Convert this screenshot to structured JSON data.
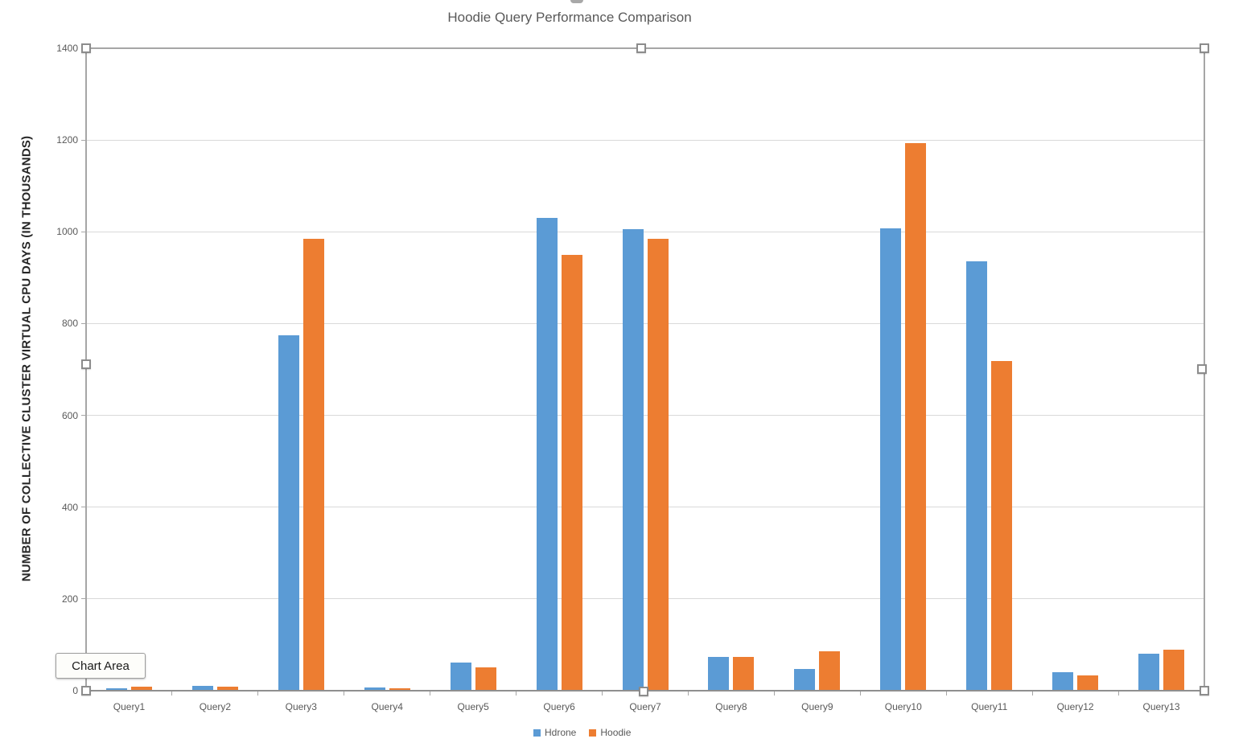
{
  "tooltip": {
    "label": "Chart Area"
  },
  "colors": {
    "hdrone": "#5B9BD5",
    "hoodie": "#ED7D31",
    "gridline": "#d9d9d9",
    "axis_text": "#595959",
    "selection_border": "#a6a6a6"
  },
  "chart_data": {
    "type": "bar",
    "title": "Hoodie Query Performance Comparison",
    "xlabel": "",
    "ylabel": "NUMBER OF COLLECTIVE CLUSTER VIRTUAL CPU DAYS (IN THOUSANDS)",
    "ylim": [
      0,
      1400
    ],
    "yticks": [
      0,
      200,
      400,
      600,
      800,
      1000,
      1200,
      1400
    ],
    "grid": true,
    "legend_position": "bottom",
    "categories": [
      "Query1",
      "Query2",
      "Query3",
      "Query4",
      "Query5",
      "Query6",
      "Query7",
      "Query8",
      "Query9",
      "Query10",
      "Query11",
      "Query12",
      "Query13"
    ],
    "series": [
      {
        "name": "Hdrone",
        "color": "#5B9BD5",
        "values": [
          5,
          10,
          775,
          7,
          62,
          1030,
          1005,
          73,
          48,
          1008,
          935,
          41,
          80
        ]
      },
      {
        "name": "Hoodie",
        "color": "#ED7D31",
        "values": [
          9,
          9,
          985,
          6,
          50,
          950,
          985,
          73,
          85,
          1193,
          718,
          34,
          89
        ]
      }
    ]
  },
  "selection": {
    "handles": [
      "top-left",
      "top-middle",
      "top-right",
      "middle-left",
      "middle-right",
      "bottom-left",
      "bottom-middle",
      "bottom-right"
    ]
  }
}
